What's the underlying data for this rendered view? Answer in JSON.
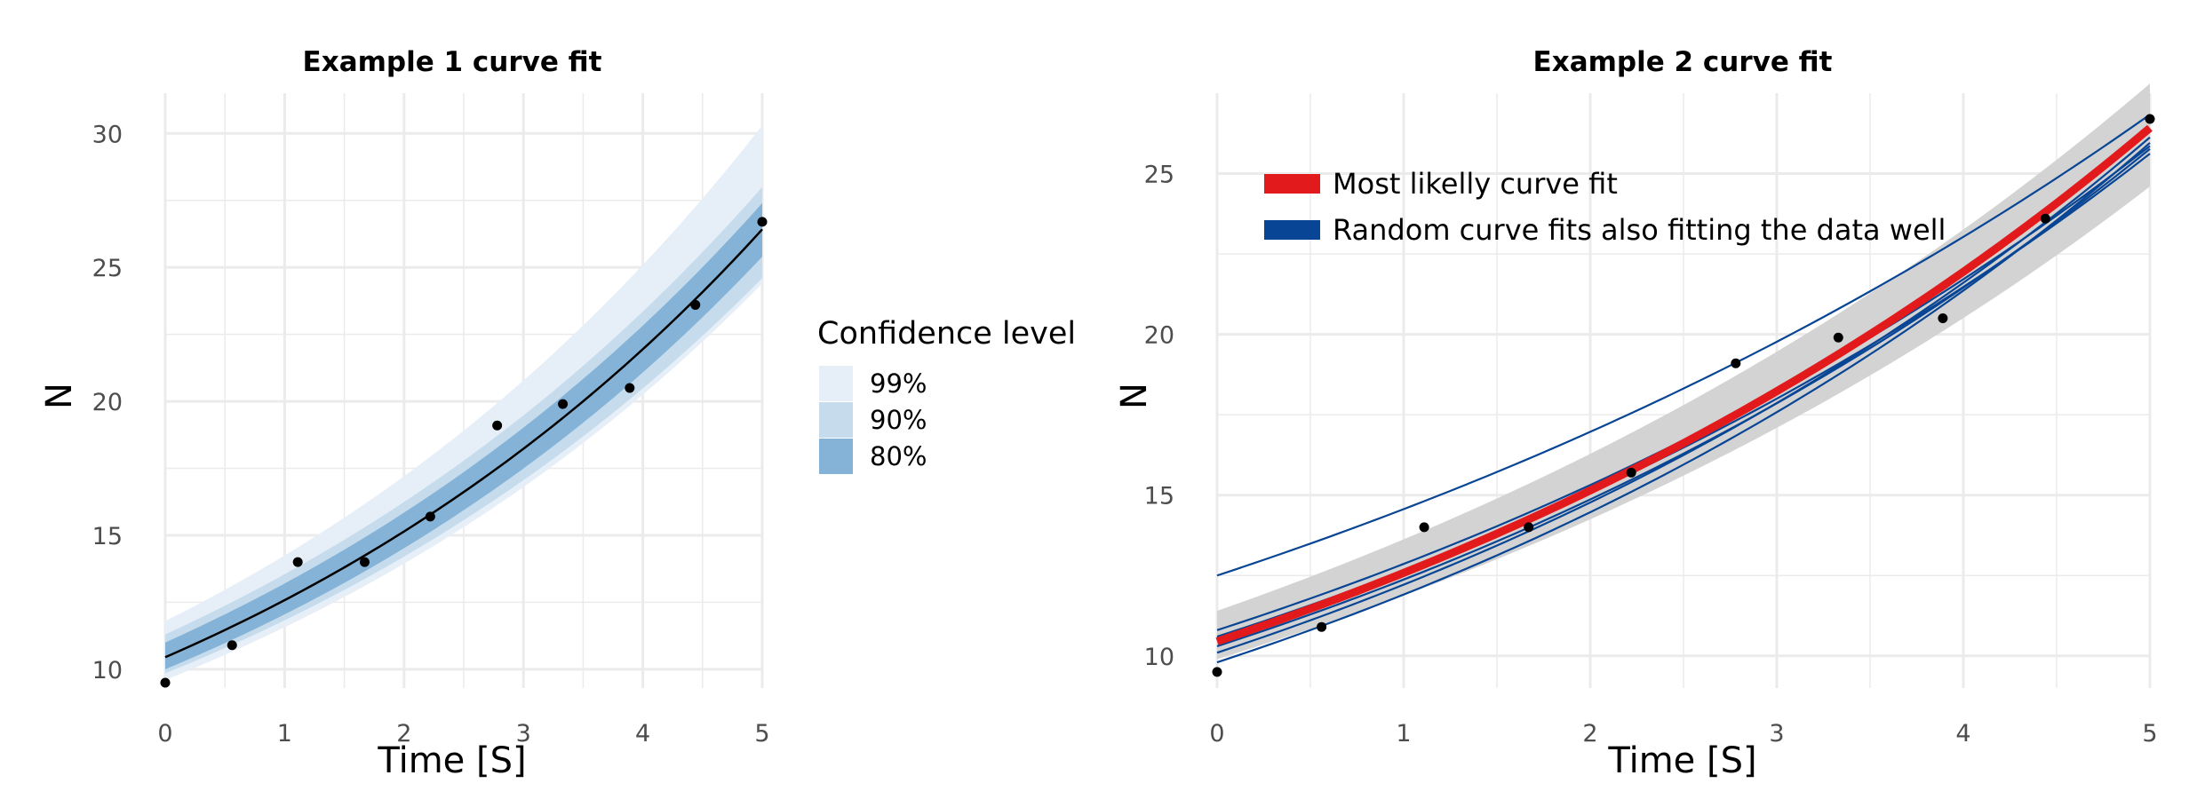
{
  "chart_data": [
    {
      "type": "line",
      "title": "Example 1 curve fit",
      "xlabel": "Time [S]",
      "ylabel": "N",
      "xlim": [
        0,
        5
      ],
      "ylim": [
        9.3,
        31.5
      ],
      "xticks": [
        0,
        1,
        2,
        3,
        4,
        5
      ],
      "yticks": [
        10,
        15,
        20,
        25,
        30
      ],
      "grid": true,
      "points": [
        {
          "x": 0,
          "y": 9.5
        },
        {
          "x": 0.56,
          "y": 10.9
        },
        {
          "x": 1.11,
          "y": 14.0
        },
        {
          "x": 1.67,
          "y": 14.0
        },
        {
          "x": 2.22,
          "y": 15.7
        },
        {
          "x": 2.78,
          "y": 19.1
        },
        {
          "x": 3.33,
          "y": 19.9
        },
        {
          "x": 3.89,
          "y": 20.5
        },
        {
          "x": 4.44,
          "y": 23.6
        },
        {
          "x": 5.0,
          "y": 26.7
        }
      ],
      "fit": {
        "form": "a*exp(b*x)",
        "a": 10.45,
        "b": 0.1855
      },
      "bands": [
        {
          "name": "99%",
          "color": "#e6eff8",
          "at_x": [
            0,
            5
          ],
          "lower": [
            9.6,
            24.4
          ],
          "upper": [
            11.8,
            30.3
          ]
        },
        {
          "name": "90%",
          "color": "#c6dcec",
          "at_x": [
            0,
            5
          ],
          "lower": [
            9.85,
            24.6
          ],
          "upper": [
            11.3,
            28.0
          ]
        },
        {
          "name": "80%",
          "color": "#84b3d7",
          "at_x": [
            0,
            5
          ],
          "lower": [
            10.0,
            25.4
          ],
          "upper": [
            11.0,
            27.4
          ]
        }
      ],
      "legend": {
        "title": "Confidence level",
        "position": "right",
        "entries": [
          "99%",
          "90%",
          "80%"
        ]
      },
      "colors": {
        "curve": "#000000",
        "points": "#000000",
        "grid": "#ebebeb"
      }
    },
    {
      "type": "line",
      "title": "Example 2 curve fit",
      "xlabel": "Time [S]",
      "ylabel": "N",
      "xlim": [
        0,
        5
      ],
      "ylim": [
        9.0,
        27.5
      ],
      "xticks": [
        0,
        1,
        2,
        3,
        4,
        5
      ],
      "yticks": [
        10,
        15,
        20,
        25
      ],
      "grid": true,
      "points": [
        {
          "x": 0,
          "y": 9.5
        },
        {
          "x": 0.56,
          "y": 10.9
        },
        {
          "x": 1.11,
          "y": 14.0
        },
        {
          "x": 1.67,
          "y": 14.0
        },
        {
          "x": 2.22,
          "y": 15.7
        },
        {
          "x": 2.78,
          "y": 19.1
        },
        {
          "x": 3.33,
          "y": 19.9
        },
        {
          "x": 3.89,
          "y": 20.5
        },
        {
          "x": 4.44,
          "y": 23.6
        },
        {
          "x": 5.0,
          "y": 26.7
        }
      ],
      "fit": {
        "form": "a*exp(b*x)",
        "a": 10.45,
        "b": 0.1855
      },
      "band": {
        "color": "#d3d3d3",
        "at_x": [
          0,
          5
        ],
        "lower": [
          9.9,
          24.6
        ],
        "upper": [
          11.4,
          27.8
        ]
      },
      "random_fits": [
        {
          "a": 12.5,
          "b": 0.1528
        },
        {
          "a": 10.8,
          "b": 0.1746
        },
        {
          "a": 10.1,
          "b": 0.1901
        },
        {
          "a": 9.8,
          "b": 0.1948
        },
        {
          "a": 10.3,
          "b": 0.1834
        },
        {
          "a": 10.6,
          "b": 0.1765
        }
      ],
      "legend": {
        "position": "top-left",
        "entries": [
          {
            "label": "Most likelly curve fit",
            "color": "#e31a1c"
          },
          {
            "label": "Random curve fits also fitting the data well",
            "color": "#084594"
          }
        ]
      },
      "colors": {
        "best_fit": "#e31a1c",
        "random_fits": "#084594",
        "points": "#000000",
        "grid": "#ebebeb"
      }
    }
  ]
}
